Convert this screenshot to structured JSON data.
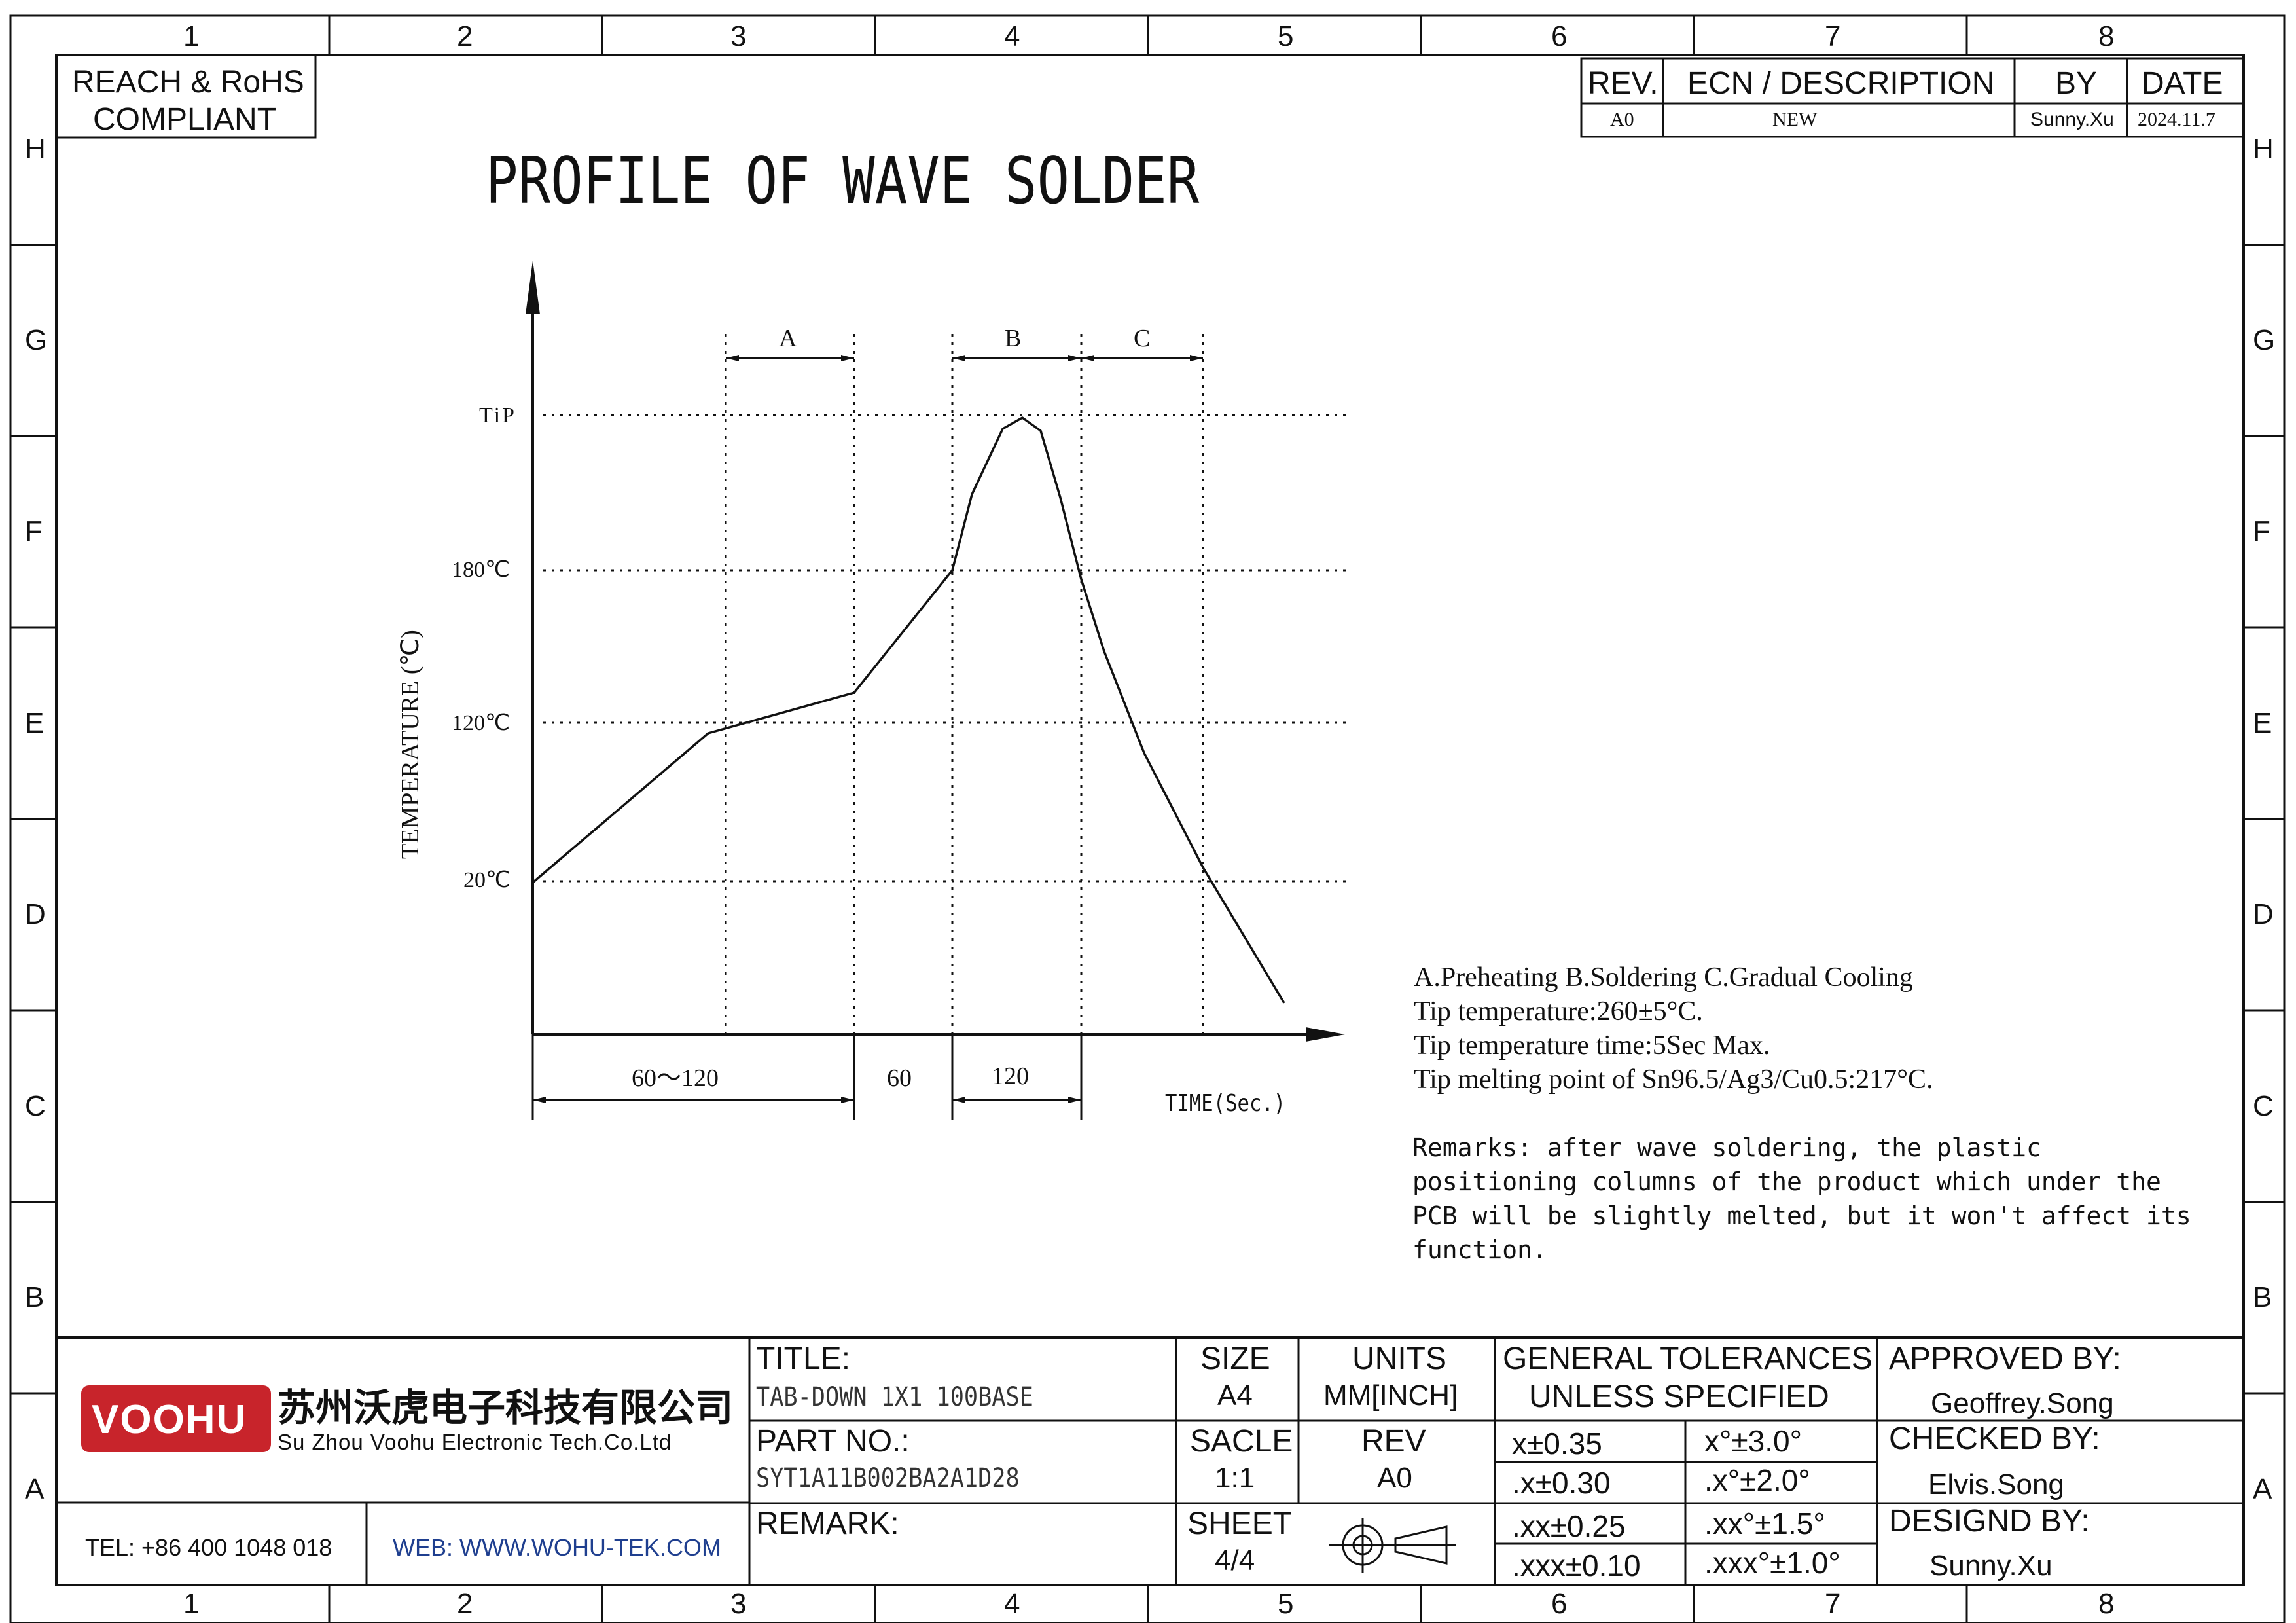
{
  "zones": {
    "columns": [
      "1",
      "2",
      "3",
      "4",
      "5",
      "6",
      "7",
      "8"
    ],
    "rows": [
      "H",
      "G",
      "F",
      "E",
      "D",
      "C",
      "B",
      "A"
    ]
  },
  "compliance": {
    "line1": "REACH & RoHS",
    "line2": "COMPLIANT"
  },
  "revision_block": {
    "headers": {
      "rev": "REV.",
      "ecn": "ECN / DESCRIPTION",
      "by": "BY",
      "date": "DATE"
    },
    "row": {
      "rev": "A0",
      "ecn": "NEW",
      "by": "Sunny.Xu",
      "date": "2024.11.7"
    }
  },
  "drawing_title": "PROFILE OF WAVE SOLDER",
  "profile_chart": {
    "y_axis_label": "TEMPERATURE (℃)",
    "x_axis_label": "TIME(Sec.)",
    "y_levels": [
      "TiP",
      "180℃",
      "120℃",
      "20℃"
    ],
    "phase_labels": {
      "a": "A",
      "b": "B",
      "c": "C"
    },
    "time_spans": {
      "preheat": "60～120",
      "mid": "60",
      "solder": "120"
    }
  },
  "notes": {
    "line1": "A.Preheating  B.Soldering  C.Gradual Cooling",
    "line2": "Tip temperature:260±5°C.",
    "line3": "Tip temperature time:5Sec Max.",
    "line4": "Tip melting point of Sn96.5/Ag3/Cu0.5:217°C.",
    "remarks": [
      "Remarks: after wave soldering, the plastic",
      "positioning columns of the product  which under the",
      "PCB will be slightly melted, but it won't affect its",
      "function."
    ]
  },
  "title_block": {
    "logo": {
      "mark": "VOOHU",
      "chinese": "苏州沃虎电子科技有限公司",
      "english": "Su Zhou Voohu Electronic Tech.Co.Ltd"
    },
    "tel": "TEL: +86 400 1048 018",
    "web": "WEB: WWW.WOHU-TEK.COM",
    "title_label": "TITLE:",
    "title_value": "TAB-DOWN 1X1 100BASE",
    "part_label": "PART NO.:",
    "part_value": "SYT1A11B002BA2A1D28",
    "remark_label": "REMARK:",
    "size_label": "SIZE",
    "size_value": "A4",
    "units_label": "UNITS",
    "units_value": "MM[INCH]",
    "scale_label": "SACLE",
    "scale_value": "1:1",
    "rev_label": "REV",
    "rev_value": "A0",
    "sheet_label": "SHEET",
    "sheet_value": "4/4",
    "tolerances": {
      "header1": "GENERAL TOLERANCES",
      "header2": "UNLESS SPECIFIED",
      "rows": [
        {
          "linear": "x±0.35",
          "angular": "x°±3.0°"
        },
        {
          "linear": ".x±0.30",
          "angular": ".x°±2.0°"
        },
        {
          "linear": ".xx±0.25",
          "angular": ".xx°±1.5°"
        },
        {
          "linear": ".xxx±0.10",
          "angular": ".xxx°±1.0°"
        }
      ]
    },
    "approved_label": "APPROVED BY:",
    "approved_value": "Geoffrey.Song",
    "checked_label": "CHECKED BY:",
    "checked_value": "Elvis.Song",
    "designed_label": "DESIGND BY:",
    "designed_value": "Sunny.Xu"
  },
  "colors": {
    "brand_red": "#c8242b",
    "web_blue": "#1f3f8f"
  }
}
